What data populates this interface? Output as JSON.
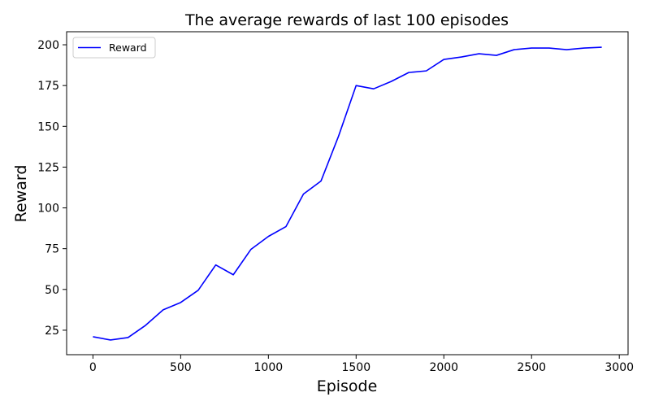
{
  "chart_data": {
    "type": "line",
    "title": "The average rewards of last 100 episodes",
    "xlabel": "Episode",
    "ylabel": "Reward",
    "xlim": [
      -150,
      3050
    ],
    "ylim": [
      10,
      208
    ],
    "x_ticks": [
      0,
      500,
      1000,
      1500,
      2000,
      2500,
      3000
    ],
    "y_ticks": [
      25,
      50,
      75,
      100,
      125,
      150,
      175,
      200
    ],
    "grid": false,
    "legend": {
      "position": "upper-left",
      "entries": [
        "Reward"
      ]
    },
    "series": [
      {
        "name": "Reward",
        "color": "#0000ff",
        "x": [
          0,
          100,
          200,
          300,
          400,
          500,
          600,
          700,
          800,
          900,
          1000,
          1100,
          1200,
          1300,
          1400,
          1500,
          1600,
          1700,
          1800,
          1900,
          2000,
          2100,
          2200,
          2300,
          2400,
          2500,
          2600,
          2700,
          2800,
          2900
        ],
        "values": [
          21,
          19,
          20.5,
          28,
          37.5,
          42,
          49.5,
          65,
          59,
          74.5,
          82.5,
          88.5,
          108.5,
          116.5,
          144,
          175,
          173,
          177.5,
          183,
          184,
          191,
          192.5,
          194.5,
          193.5,
          197,
          198,
          198,
          197,
          198,
          198.5
        ]
      }
    ]
  }
}
